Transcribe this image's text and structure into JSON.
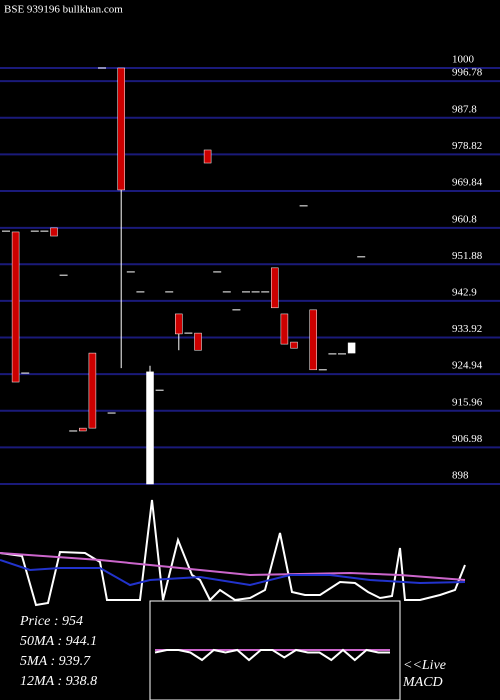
{
  "chart_data": [
    {
      "type": "candlestick",
      "title": "BSE 939196  bullkhan.com",
      "ylim": [
        898,
        1000
      ],
      "yticks": [
        1000,
        996.78,
        987.8,
        978.82,
        969.84,
        960.8,
        951.88,
        942.9,
        933.92,
        924.94,
        915.96,
        906.98,
        898
      ],
      "grid": true,
      "up_color": "#ffffff",
      "down_color": "#cc0000",
      "grid_color": "#1a1a7a",
      "open": [
        960.0,
        959.8,
        925.2,
        960.0,
        960.0,
        960.8,
        949.2,
        911.0,
        911.7,
        930.1,
        1000,
        915.4,
        1000,
        950.0,
        945.1,
        898,
        921.0,
        945.1,
        939.7,
        935.0,
        935.0,
        979.9,
        950.0,
        945.1,
        940.7,
        945.1,
        945.1,
        945.1,
        951.0,
        939.7,
        932.8,
        966.2,
        940.7,
        926.0,
        929.9,
        929.9,
        930.1,
        953.7
      ],
      "high": [
        960.0,
        959.8,
        925.2,
        960.0,
        960.0,
        960.8,
        949.2,
        911.0,
        911.7,
        930.1,
        1000,
        915.4,
        1000,
        950.0,
        945.1,
        927.0,
        921.0,
        945.1,
        939.7,
        935.0,
        935.0,
        979.9,
        950.0,
        945.1,
        940.7,
        945.1,
        945.1,
        945.1,
        951.0,
        939.7,
        932.8,
        966.2,
        940.7,
        926.0,
        929.9,
        929.9,
        932.6,
        953.7
      ],
      "low": [
        960.0,
        923.0,
        925.2,
        960.0,
        960.0,
        958.8,
        949.2,
        911.0,
        911.0,
        911.7,
        1000,
        915.4,
        926.4,
        950.0,
        945.1,
        898,
        921.0,
        945.1,
        930.8,
        935.0,
        930.8,
        976.7,
        950.0,
        945.1,
        940.7,
        945.1,
        945.1,
        945.1,
        941.2,
        932.3,
        931.3,
        966.2,
        926.0,
        926.0,
        929.9,
        929.9,
        930.1,
        953.7
      ],
      "close": [
        960.0,
        923.0,
        925.2,
        960.0,
        960.0,
        958.8,
        949.2,
        911.0,
        911.0,
        911.7,
        1000,
        915.4,
        970.1,
        950.0,
        945.1,
        925.5,
        921.0,
        945.1,
        934.8,
        935.0,
        930.8,
        976.7,
        950.0,
        945.1,
        940.7,
        945.1,
        945.1,
        945.1,
        941.2,
        932.3,
        931.3,
        966.2,
        926.0,
        926.0,
        929.9,
        929.9,
        932.6,
        953.7
      ]
    },
    {
      "type": "line",
      "xlim": [
        0,
        500
      ],
      "ylim": [
        0,
        110
      ],
      "series": [
        {
          "name": "Price",
          "color": "#ffffff",
          "x": [
            0,
            22,
            36,
            48,
            60,
            85,
            100,
            107,
            120,
            140,
            152,
            163,
            178,
            192,
            200,
            210,
            220,
            235,
            250,
            265,
            280,
            292,
            305,
            320,
            340,
            355,
            368,
            380,
            392,
            400,
            405,
            420,
            440,
            455,
            465
          ],
          "values": [
            57,
            54,
            5,
            7,
            58,
            57,
            48,
            10,
            10,
            10,
            110,
            10,
            70,
            35,
            30,
            10,
            20,
            10,
            12,
            20,
            77,
            18,
            15,
            15,
            28,
            27,
            18,
            12,
            14,
            62,
            10,
            10,
            15,
            20,
            45
          ]
        },
        {
          "name": "12MA",
          "color": "#cc66cc",
          "x": [
            0,
            100,
            150,
            200,
            250,
            300,
            350,
            400,
            465
          ],
          "values": [
            57,
            50,
            45,
            40,
            35,
            36,
            37,
            35,
            30
          ]
        },
        {
          "name": "50MA",
          "color": "#2233cc",
          "x": [
            0,
            30,
            60,
            100,
            130,
            150,
            200,
            250,
            290,
            330,
            370,
            420,
            465
          ],
          "values": [
            50,
            40,
            42,
            42,
            25,
            30,
            33,
            25,
            35,
            35,
            30,
            27,
            28
          ]
        }
      ]
    },
    {
      "type": "legend",
      "separator": " : ",
      "items": [
        {
          "name": "Price",
          "value": 954
        },
        {
          "name": "50MA",
          "value": 944.1
        },
        {
          "name": "5MA",
          "value": 939.7
        },
        {
          "name": "12MA",
          "value": 938.8
        }
      ]
    },
    {
      "type": "macd",
      "label": [
        "<<Live",
        "MACD"
      ],
      "xlim": [
        0,
        10
      ],
      "ylim": [
        0,
        10
      ],
      "series": [
        {
          "color": "#cc66cc",
          "x": [
            0,
            10
          ],
          "values": [
            6,
            6
          ]
        },
        {
          "color": "#ffffff",
          "x": [
            0,
            0.5,
            1,
            1.5,
            2,
            2.5,
            3,
            3.5,
            4,
            4.5,
            5,
            5.5,
            6,
            6.5,
            7,
            7.5,
            8,
            8.5,
            9,
            9.5,
            10
          ],
          "values": [
            5,
            6,
            6,
            5,
            2,
            6,
            5,
            6,
            2,
            6,
            6,
            3,
            6,
            5,
            5,
            2,
            6,
            2,
            6,
            5,
            5
          ]
        }
      ]
    }
  ]
}
